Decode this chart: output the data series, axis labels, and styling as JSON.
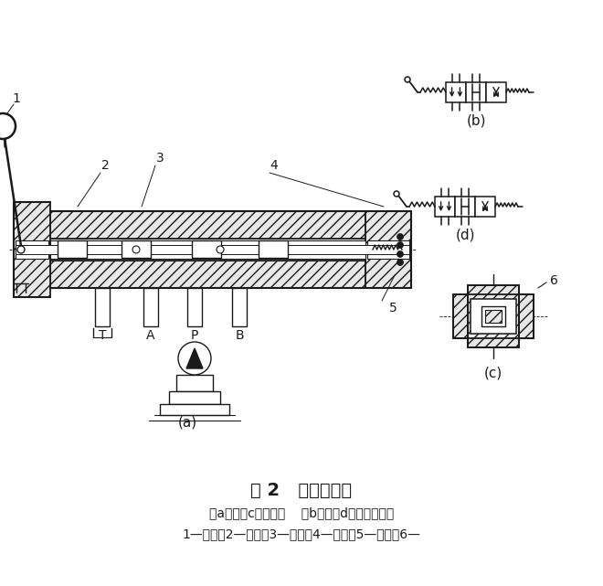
{
  "title": "图 2   手动换向阀",
  "subtitle1": "（a）、（c）结构图    （b）、（d）职能符号图",
  "subtitle2": "1—手柄；2—阀芯；3—阀体；4—弹簧；5—定位；6—",
  "bg_color": "#ffffff",
  "lc": "#1a1a1a",
  "label_a": "(a)",
  "label_b": "(b)",
  "label_c": "(c)",
  "label_d": "(d)"
}
